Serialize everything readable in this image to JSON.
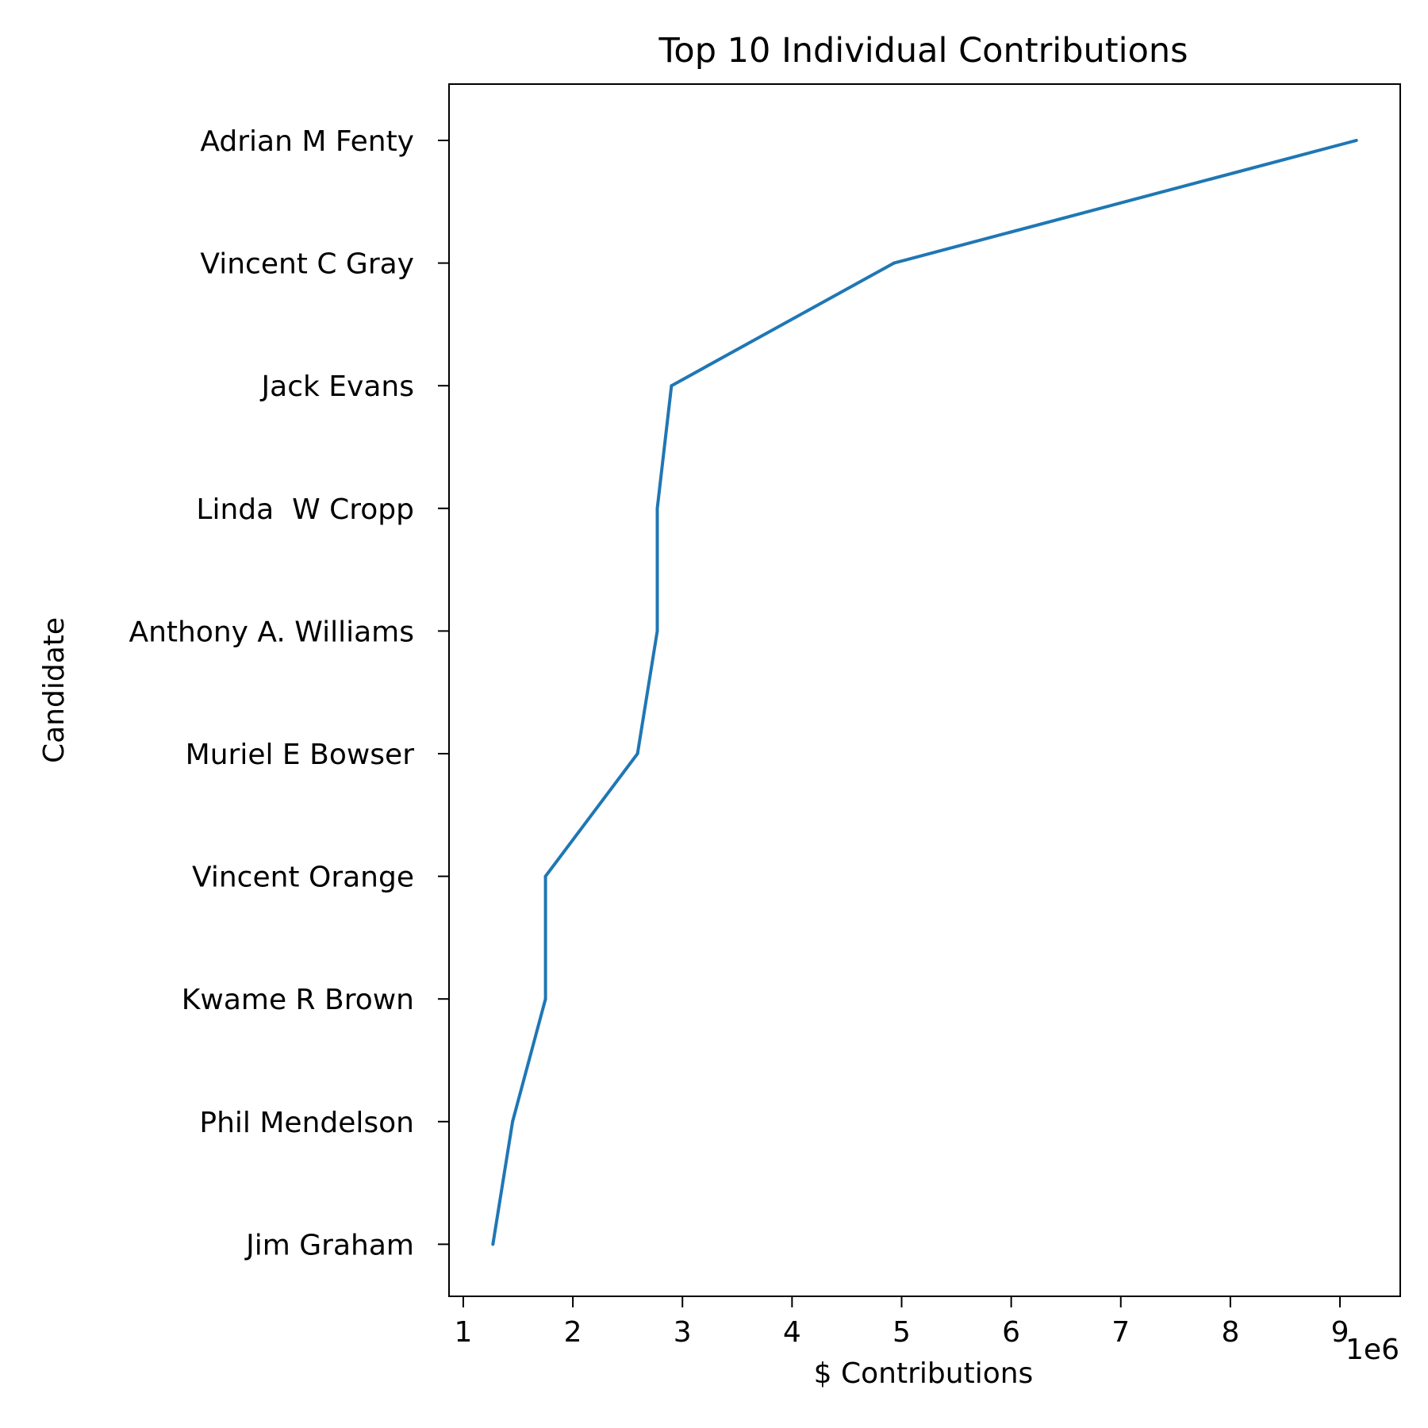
{
  "chart_data": {
    "type": "line",
    "title": "Top 10 Individual Contributions",
    "xlabel": "$ Contributions",
    "ylabel": "Candidate",
    "x_offset_label": "1e6",
    "xlim": [
      0.87,
      9.55
    ],
    "xticks": [
      1,
      2,
      3,
      4,
      5,
      6,
      7,
      8,
      9
    ],
    "xtick_labels": [
      "1",
      "2",
      "3",
      "4",
      "5",
      "6",
      "7",
      "8",
      "9"
    ],
    "categories": [
      "Adrian M Fenty",
      "Vincent C Gray",
      "Jack Evans",
      "Linda  W Cropp",
      "Anthony A. Williams",
      "Muriel E Bowser",
      "Vincent Orange",
      "Kwame R Brown",
      "Phil Mendelson",
      "Jim Graham"
    ],
    "values": [
      9.15,
      4.93,
      2.9,
      2.77,
      2.77,
      2.59,
      1.75,
      1.75,
      1.45,
      1.27
    ],
    "grid": false,
    "line_color": "#1f77b4"
  }
}
